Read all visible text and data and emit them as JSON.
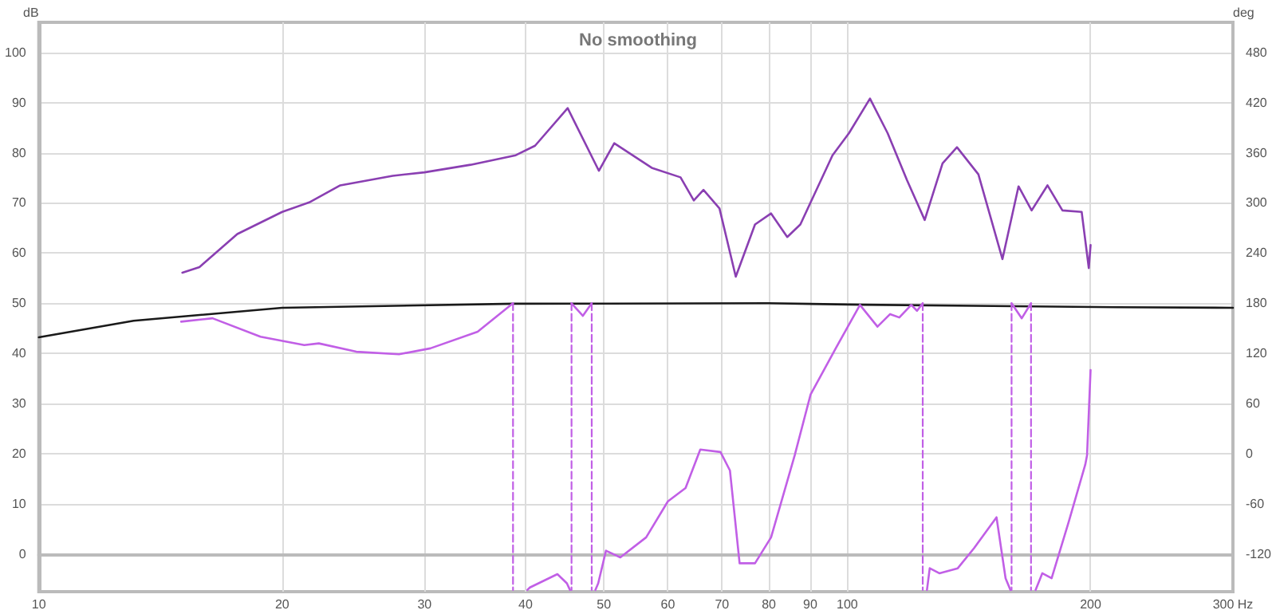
{
  "chart_data": {
    "type": "line",
    "title": "No smoothing",
    "ylabel": "dB",
    "y2label": "deg",
    "log": "x",
    "grid": true,
    "marker": "none",
    "xlim": [
      10,
      300
    ],
    "xticks": [
      10,
      20,
      30,
      40,
      50,
      60,
      70,
      80,
      90,
      100,
      200,
      {
        "value": 300,
        "label": "300 Hz"
      }
    ],
    "ylim": [
      -7.5,
      106
    ],
    "yticks": [
      0,
      10,
      20,
      30,
      40,
      50,
      60,
      70,
      80,
      90,
      100
    ],
    "y2lim": [
      -165,
      516
    ],
    "y2ticks": [
      -120,
      -60,
      0,
      60,
      120,
      180,
      240,
      300,
      360,
      420,
      480
    ],
    "series": [
      {
        "color": "#8a3fb2",
        "x": [
          15.05,
          15.8,
          17.6,
          20.0,
          21.6,
          23.6,
          27.4,
          30.0,
          34.2,
          38.9,
          41.1,
          45.1,
          49.3,
          51.5,
          57.3,
          62.2,
          64.6,
          66.4,
          69.5,
          72.8,
          76.9,
          80.5,
          84.3,
          87.5,
          95.9,
          100.5,
          106.7,
          112.2,
          118.6,
          124.7,
          131.2,
          136.7,
          145.3,
          155.6,
          162.9,
          169.1,
          176.9,
          184.6,
          195,
          199,
          200
        ],
        "values": [
          56.1,
          57.2,
          63.8,
          68.2,
          70.1,
          73.5,
          75.4,
          76.1,
          77.6,
          79.5,
          81.4,
          88.9,
          76.4,
          81.9,
          77.0,
          75.1,
          70.5,
          72.6,
          68.9,
          55.3,
          65.7,
          67.9,
          63.2,
          65.7,
          79.5,
          83.9,
          90.8,
          83.9,
          74.5,
          66.6,
          77.9,
          81.1,
          75.7,
          58.8,
          73.3,
          68.5,
          73.5,
          68.5,
          68.2,
          57.0,
          61.6
        ]
      },
      {
        "color": "#1a1a1a",
        "x": [
          10,
          13.1,
          20.0,
          38.7,
          79.8,
          104.6,
          215,
          300
        ],
        "values": [
          43.2,
          46.5,
          49.1,
          49.9,
          50.0,
          49.7,
          49.2,
          49.1
        ]
      },
      {
        "color": "#c15fe6",
        "axis": "y2",
        "x": [
          15.0,
          16.4,
          18.8,
          21.3,
          22.2,
          24.7,
          27.9,
          30.5,
          34.9,
          38.6
        ],
        "values": [
          158,
          162,
          140,
          130,
          132,
          122,
          119,
          126,
          146,
          180
        ]
      },
      {
        "color": "#c15fe6",
        "axis": "y2",
        "x": [
          40.2,
          40.5,
          43.8,
          45.0,
          45.4
        ],
        "values": [
          -163,
          -160,
          -144,
          -155,
          -163
        ]
      },
      {
        "color": "#c15fe6",
        "axis": "y2",
        "x": [
          45.6,
          47.1,
          48.3
        ],
        "values": [
          180,
          165,
          180
        ]
      },
      {
        "color": "#c15fe6",
        "axis": "y2",
        "x": [
          48.8,
          49.2,
          50.3,
          52.4,
          56.4,
          60.0,
          63.1,
          65.8,
          69.7,
          71.6,
          73.6,
          76.9,
          80.5,
          86.1,
          90.1,
          96.9,
          103.7,
          109,
          113,
          116,
          120,
          122,
          124
        ],
        "values": [
          -163,
          -155,
          -116,
          -124,
          -100,
          -57,
          -41,
          5,
          2,
          -20,
          -131,
          -131,
          -100,
          -2,
          71,
          127,
          178,
          152,
          167,
          163,
          178,
          171,
          180
        ]
      },
      {
        "color": "#c15fe6",
        "axis": "y2",
        "x": [
          125.5,
          126.5,
          130,
          137,
          143.5,
          153,
          157,
          159.2
        ],
        "values": [
          -163,
          -137,
          -143,
          -137,
          -113,
          -76,
          -149,
          -163
        ]
      },
      {
        "color": "#c15fe6",
        "axis": "y2",
        "x": [
          159.7,
          164.4,
          168.8
        ],
        "values": [
          180,
          162,
          180
        ]
      },
      {
        "color": "#c15fe6",
        "axis": "y2",
        "x": [
          171,
          174.3,
          179,
          188,
          197,
          198,
          200
        ],
        "values": [
          -163,
          -143,
          -149,
          -81,
          -13,
          -2,
          100
        ]
      },
      {
        "color": "#c15fe6",
        "axis": "y2",
        "line_style": "dashed",
        "x": [
          38.6,
          38.6
        ],
        "values": [
          180,
          -163
        ]
      },
      {
        "color": "#c15fe6",
        "axis": "y2",
        "line_style": "dashed",
        "x": [
          45.6,
          45.6
        ],
        "values": [
          180,
          -163
        ]
      },
      {
        "color": "#c15fe6",
        "axis": "y2",
        "line_style": "dashed",
        "x": [
          48.3,
          48.3
        ],
        "values": [
          180,
          -163
        ]
      },
      {
        "color": "#c15fe6",
        "axis": "y2",
        "line_style": "dashed",
        "x": [
          124,
          124
        ],
        "values": [
          180,
          -163
        ]
      },
      {
        "color": "#c15fe6",
        "axis": "y2",
        "line_style": "dashed",
        "x": [
          159.7,
          159.7
        ],
        "values": [
          180,
          -163
        ]
      },
      {
        "color": "#c15fe6",
        "axis": "y2",
        "line_style": "dashed",
        "x": [
          168.8,
          168.8
        ],
        "values": [
          180,
          -163
        ]
      }
    ]
  }
}
